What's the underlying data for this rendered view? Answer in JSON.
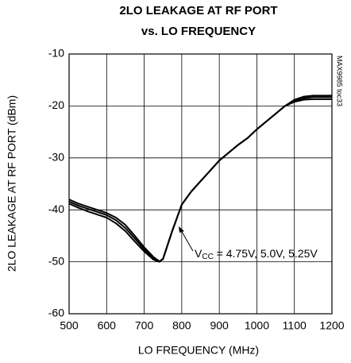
{
  "chart_data": {
    "type": "line",
    "title": [
      "2LO LEAKAGE AT RF PORT",
      "vs. LO FREQUENCY"
    ],
    "x_label": "LO FREQUENCY (MHz)",
    "y_label": "2LO LEAKAGE AT RF PORT (dBm)",
    "side_note": "MAX9985 toc33",
    "annotation": [
      "V",
      "CC",
      " = 4.75V, 5.0V, 5.25V"
    ],
    "x": [
      500,
      525,
      550,
      575,
      600,
      625,
      650,
      675,
      700,
      725,
      740,
      750,
      775,
      800,
      825,
      850,
      875,
      900,
      925,
      950,
      975,
      1000,
      1025,
      1050,
      1075,
      1100,
      1125,
      1150,
      1175,
      1200
    ],
    "series": [
      {
        "color": "#000000",
        "values": [
          -38,
          -38.8,
          -39.4,
          -40,
          -40.6,
          -41.5,
          -42.9,
          -45,
          -47.2,
          -49.1,
          -49.9,
          -49.5,
          -44,
          -39,
          -36.5,
          -34.5,
          -32.5,
          -30.5,
          -29,
          -27.5,
          -26.2,
          -24.5,
          -23,
          -21.5,
          -20,
          -18.8,
          -18.2,
          -18,
          -18,
          -18
        ]
      },
      {
        "color": "#000000",
        "values": [
          -38.4,
          -39.2,
          -39.8,
          -40.4,
          -41,
          -42,
          -43.5,
          -45.5,
          -47.6,
          -49.4,
          -50,
          -49.5,
          -44,
          -39,
          -36.5,
          -34.5,
          -32.5,
          -30.5,
          -29,
          -27.5,
          -26.2,
          -24.5,
          -23,
          -21.5,
          -20,
          -19,
          -18.5,
          -18.3,
          -18.3,
          -18.3
        ]
      },
      {
        "color": "#000000",
        "values": [
          -38.8,
          -39.6,
          -40.3,
          -40.9,
          -41.5,
          -42.6,
          -44.1,
          -46.1,
          -48,
          -49.6,
          -50,
          -49.4,
          -44,
          -39,
          -36.5,
          -34.5,
          -32.5,
          -30.5,
          -29,
          -27.5,
          -26.2,
          -24.5,
          -23,
          -21.5,
          -20,
          -19.2,
          -18.8,
          -18.7,
          -18.7,
          -18.7
        ]
      }
    ],
    "xlim": [
      500,
      1200
    ],
    "xticks": [
      500,
      600,
      700,
      800,
      900,
      1000,
      1100,
      1200
    ],
    "ylim": [
      -60,
      -10
    ],
    "yticks": [
      -10,
      -20,
      -30,
      -40,
      -50,
      -60
    ],
    "grid": true
  }
}
